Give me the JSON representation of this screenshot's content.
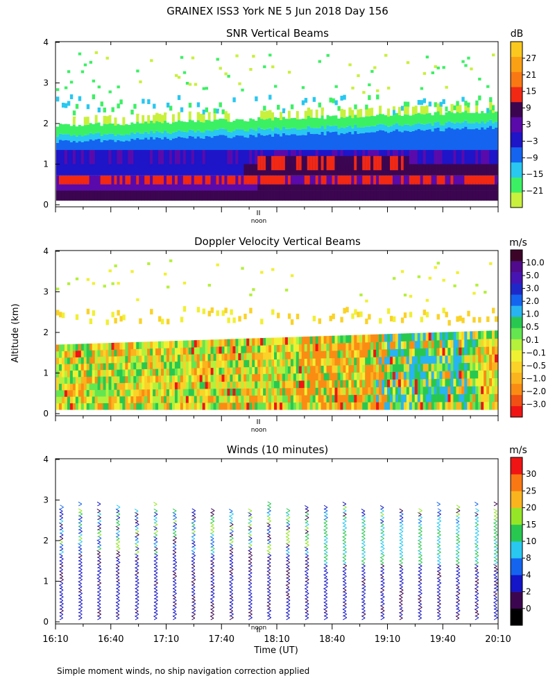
{
  "figure_title": "GRAINEX ISS3 York NE   5 Jun 2018 Day 156",
  "footnote": "Simple moment winds, no ship navigation correction applied",
  "y_axis_label": "Altitude (km)",
  "x_axis_label": "Time (UT)",
  "noon_label": "noon",
  "colors": {
    "background": "#ffffff",
    "axis": "#000000"
  },
  "chart_data": [
    {
      "type": "heatmap",
      "title": "SNR Vertical Beams",
      "ylabel": "Altitude (km)",
      "ylim": [
        0,
        4
      ],
      "yticks": [
        "0",
        "1",
        "2",
        "3",
        "4"
      ],
      "xlim": [
        "16:10",
        "20:10"
      ],
      "colorbar": {
        "unit": "dB",
        "labels": [
          "27",
          "21",
          "15",
          "9",
          "3",
          "−3",
          "−9",
          "−15",
          "−21"
        ],
        "colors": [
          "#c8f03c",
          "#3cf064",
          "#28c8f0",
          "#1464f0",
          "#1e14c8",
          "#5a0aaa",
          "#3c0550",
          "#f02814",
          "#fa7814",
          "#faa014",
          "#fac81e"
        ]
      }
    },
    {
      "type": "heatmap",
      "title": "Doppler Velocity Vertical Beams",
      "ylabel": "Altitude (km)",
      "ylim": [
        0,
        4
      ],
      "yticks": [
        "0",
        "1",
        "2",
        "3",
        "4"
      ],
      "xlim": [
        "16:10",
        "20:10"
      ],
      "colorbar": {
        "unit": "m/s",
        "labels": [
          "10.0",
          "5.0",
          "3.0",
          "2.0",
          "1.0",
          "0.5",
          "0.1",
          "−0.1",
          "−0.5",
          "−1.0",
          "−2.0",
          "−3.0"
        ],
        "colors": [
          "#f01414",
          "#f05014",
          "#fa8c14",
          "#fab41e",
          "#fad228",
          "#f0f032",
          "#b4f03c",
          "#64e650",
          "#28c850",
          "#28b4f0",
          "#1464f0",
          "#1e28c8",
          "#4614b4",
          "#500a8c",
          "#3c0528"
        ]
      }
    },
    {
      "type": "wind_barbs",
      "title": "Winds (10 minutes)",
      "ylabel": "Altitude (km)",
      "ylim": [
        0,
        4
      ],
      "yticks": [
        "0",
        "1",
        "2",
        "3",
        "4"
      ],
      "xlabel": "Time (UT)",
      "x": [
        "16:10",
        "16:40",
        "17:10",
        "17:40",
        "18:10",
        "18:40",
        "19:10",
        "19:40",
        "20:10"
      ],
      "colorbar": {
        "unit": "m/s",
        "labels": [
          "30",
          "25",
          "20",
          "15",
          "10",
          "8",
          "4",
          "2",
          "0"
        ],
        "colors": [
          "#000000",
          "#3c0550",
          "#1414c8",
          "#1464f0",
          "#28c8f0",
          "#28c850",
          "#96e628",
          "#fab41e",
          "#fa7814",
          "#f01414"
        ]
      }
    }
  ]
}
